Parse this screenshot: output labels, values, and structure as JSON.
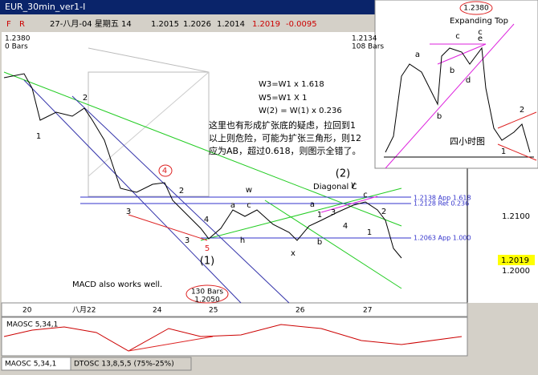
{
  "window": {
    "title": "EUR_30min_ver1-I",
    "toolbar": [
      "F",
      "R"
    ]
  },
  "quote": {
    "date": "27-八月-04 星期五 14",
    "open": "1.2015",
    "high": "1.2026",
    "low": "1.2014",
    "close": "1.2019",
    "change": "-0.0095"
  },
  "markers": {
    "start": [
      "1.2380",
      "0 Bars"
    ],
    "end": [
      "1.2134",
      "108 Bars"
    ],
    "bottom": [
      "130 Bars",
      "1.2050"
    ]
  },
  "notes": {
    "waves": [
      "W3=W1 x 1.618",
      "W5=W1 X 1",
      "W(2) = W(1) x 0.236"
    ],
    "comment": [
      "这里也有形成扩张底的疑虑，拉回到1",
      "以上则危险，可能为扩张三角形，则12",
      "应为AB，超过0.618，则图示全错了。"
    ],
    "diagonal": "Diagonal C",
    "macd": "MACD also works well."
  },
  "levels": [
    "1.2138 App 1.618",
    "1.2128 Ret 0.236",
    "1.2063 App 1.000"
  ],
  "wave_labels": [
    "1",
    "2",
    "3",
    "4",
    "2",
    "4",
    "3",
    "5",
    "(1)",
    "w",
    "a",
    "c",
    "h",
    "x",
    "b",
    "a",
    "1",
    "3",
    "4",
    "c",
    "(2)",
    "y",
    "2",
    "1"
  ],
  "price_axis": {
    "labels": [
      "1.2100",
      "1.2000"
    ],
    "current": "1.2019"
  },
  "date_axis": [
    "20",
    "八月22",
    "24",
    "25",
    "26",
    "27"
  ],
  "inset": {
    "title": "Expanding Top",
    "top": "1.2380",
    "caption": "四小时图",
    "labels": [
      "a",
      "c",
      "e",
      "c",
      "b",
      "d",
      "b",
      "1",
      "2"
    ]
  },
  "indicator": {
    "name": "MAOSC 5,34,1"
  },
  "tabs": [
    "MAOSC 5,34,1",
    "DTOSC 13,8,5,5 (75%-25%)"
  ]
}
